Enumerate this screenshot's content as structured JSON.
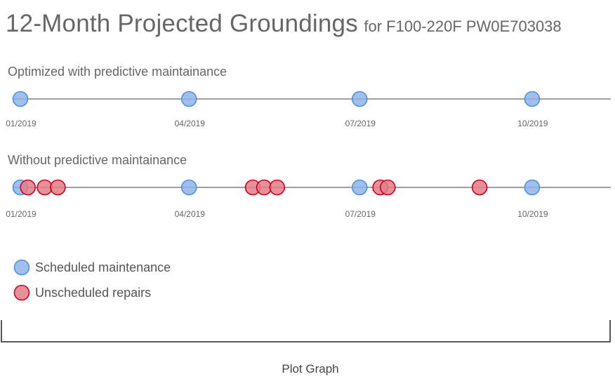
{
  "title": "12-Month Projected Groundings",
  "subtitle": "for F100-220F PW0E703038",
  "caption": "Plot Graph",
  "colors": {
    "scheduled_fill": "#8fb4ea",
    "scheduled_stroke": "#4f8fe0",
    "unscheduled_fill": "#e37d88",
    "unscheduled_stroke": "#c9001e",
    "axis": "#666666"
  },
  "chart_data": {
    "type": "scatter",
    "x_axis": {
      "unit": "month",
      "range": [
        "01/2019",
        "12/2019"
      ],
      "ticks": [
        "01/2019",
        "04/2019",
        "07/2019",
        "10/2019"
      ]
    },
    "rows": [
      {
        "label": "Optimized with predictive maintainance",
        "events": [
          {
            "date": "2019-01-01",
            "type": "scheduled"
          },
          {
            "date": "2019-04-01",
            "type": "scheduled"
          },
          {
            "date": "2019-07-01",
            "type": "scheduled"
          },
          {
            "date": "2019-10-01",
            "type": "scheduled"
          }
        ]
      },
      {
        "label": "Without predictive maintainance",
        "events": [
          {
            "date": "2019-01-01",
            "type": "scheduled"
          },
          {
            "date": "2019-04-01",
            "type": "scheduled"
          },
          {
            "date": "2019-07-01",
            "type": "scheduled"
          },
          {
            "date": "2019-10-01",
            "type": "scheduled"
          },
          {
            "date": "2019-01-05",
            "type": "unscheduled"
          },
          {
            "date": "2019-01-14",
            "type": "unscheduled"
          },
          {
            "date": "2019-01-21",
            "type": "unscheduled"
          },
          {
            "date": "2019-05-05",
            "type": "unscheduled"
          },
          {
            "date": "2019-05-11",
            "type": "unscheduled"
          },
          {
            "date": "2019-05-18",
            "type": "unscheduled"
          },
          {
            "date": "2019-07-12",
            "type": "unscheduled"
          },
          {
            "date": "2019-07-16",
            "type": "unscheduled"
          },
          {
            "date": "2019-09-03",
            "type": "unscheduled"
          }
        ]
      }
    ],
    "legend": {
      "placement": "bottom-left",
      "entries": [
        {
          "label": "Scheduled maintenance",
          "type": "scheduled"
        },
        {
          "label": "Unscheduled repairs",
          "type": "unscheduled"
        }
      ]
    }
  }
}
